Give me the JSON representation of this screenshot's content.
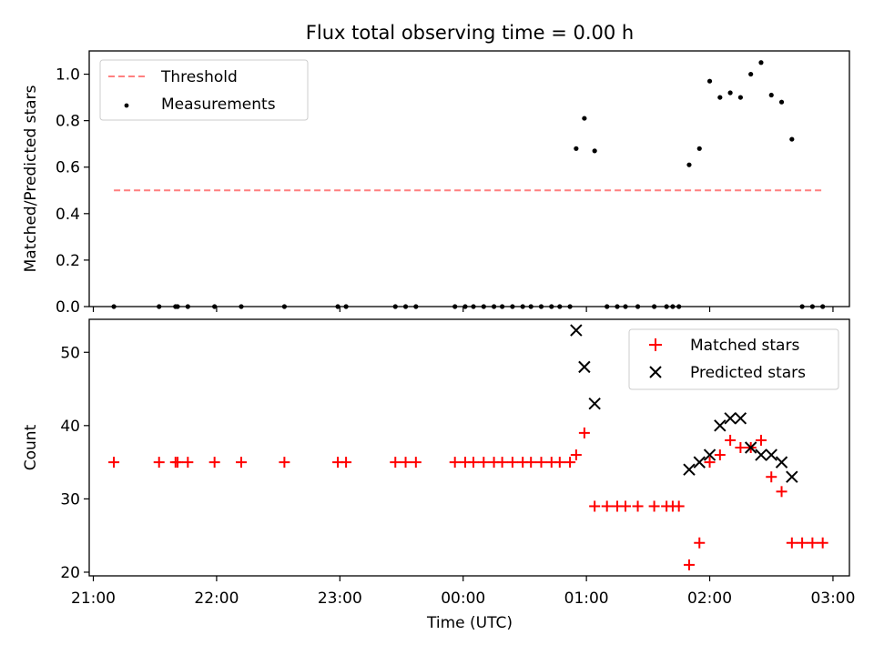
{
  "title": "Flux total observing time = 0.00 h",
  "colors": {
    "threshold": "#ff7f7f",
    "measurement": "#000000",
    "matched": "#ff0000",
    "predicted": "#000000"
  },
  "chart_data": [
    {
      "type": "scatter",
      "panel": "top",
      "ylabel": "Matched/Predicted stars",
      "ylim": [
        0,
        1.1
      ],
      "yticks": [
        0.0,
        0.2,
        0.4,
        0.6,
        0.8,
        1.0
      ],
      "ytick_labels": [
        "0.0",
        "0.2",
        "0.4",
        "0.6",
        "0.8",
        "1.0"
      ],
      "legend": {
        "position": "upper-left",
        "entries": [
          {
            "name": "Threshold",
            "marker": "dashed-line",
            "color": "#ff7f7f"
          },
          {
            "name": "Measurements",
            "marker": "dot",
            "color": "#000000"
          }
        ]
      },
      "threshold": {
        "name": "Threshold",
        "value": 0.5,
        "x_start": "21:10",
        "x_end": "02:55"
      },
      "series": [
        {
          "name": "Measurements",
          "x": [
            "21:10",
            "21:32",
            "21:40",
            "21:41",
            "21:46",
            "21:59",
            "22:12",
            "22:33",
            "22:59",
            "23:03",
            "23:27",
            "23:32",
            "23:37",
            "23:56",
            "24:01",
            "24:05",
            "24:10",
            "24:15",
            "24:19",
            "24:24",
            "24:29",
            "24:33",
            "24:38",
            "24:43",
            "24:47",
            "24:52",
            "24:55",
            "24:59",
            "25:04",
            "25:10",
            "25:15",
            "25:19",
            "25:25",
            "25:33",
            "25:39",
            "25:42",
            "25:45",
            "25:50",
            "25:55",
            "26:00",
            "26:05",
            "26:10",
            "26:15",
            "26:20",
            "26:25",
            "26:30",
            "26:35",
            "26:40",
            "26:45",
            "26:50",
            "26:55"
          ],
          "y": [
            0,
            0,
            0,
            0,
            0,
            0,
            0,
            0,
            0,
            0,
            0,
            0,
            0,
            0,
            0,
            0,
            0,
            0,
            0,
            0,
            0,
            0,
            0,
            0,
            0,
            0,
            0.68,
            0.81,
            0.67,
            0,
            0,
            0,
            0,
            0,
            0,
            0,
            0,
            0.61,
            0.68,
            0.97,
            0.9,
            0.92,
            0.9,
            1.0,
            1.05,
            0.91,
            0.88,
            0.72,
            0,
            0,
            0
          ]
        }
      ]
    },
    {
      "type": "scatter",
      "panel": "bottom",
      "xlabel": "Time (UTC)",
      "ylabel": "Count",
      "xlim": [
        "20:58",
        "03:08"
      ],
      "xticks": [
        "21:00",
        "22:00",
        "23:00",
        "00:00",
        "01:00",
        "02:00",
        "03:00"
      ],
      "ylim": [
        19.5,
        54.5
      ],
      "yticks": [
        20,
        30,
        40,
        50
      ],
      "ytick_labels": [
        "20",
        "30",
        "40",
        "50"
      ],
      "legend": {
        "position": "upper-right",
        "entries": [
          {
            "name": "Matched stars",
            "marker": "plus",
            "color": "#ff0000"
          },
          {
            "name": "Predicted stars",
            "marker": "x",
            "color": "#000000"
          }
        ]
      },
      "series": [
        {
          "name": "Matched stars",
          "x": [
            "21:10",
            "21:32",
            "21:40",
            "21:41",
            "21:46",
            "21:59",
            "22:12",
            "22:33",
            "22:59",
            "23:03",
            "23:27",
            "23:32",
            "23:37",
            "23:56",
            "24:01",
            "24:05",
            "24:10",
            "24:15",
            "24:19",
            "24:24",
            "24:29",
            "24:33",
            "24:38",
            "24:43",
            "24:47",
            "24:52",
            "24:55",
            "24:59",
            "25:04",
            "25:10",
            "25:15",
            "25:19",
            "25:25",
            "25:33",
            "25:39",
            "25:42",
            "25:45",
            "25:50",
            "25:55",
            "26:00",
            "26:05",
            "26:10",
            "26:15",
            "26:20",
            "26:25",
            "26:30",
            "26:35",
            "26:40",
            "26:45",
            "26:50",
            "26:55"
          ],
          "y": [
            35,
            35,
            35,
            35,
            35,
            35,
            35,
            35,
            35,
            35,
            35,
            35,
            35,
            35,
            35,
            35,
            35,
            35,
            35,
            35,
            35,
            35,
            35,
            35,
            35,
            35,
            36,
            39,
            29,
            29,
            29,
            29,
            29,
            29,
            29,
            29,
            29,
            21,
            24,
            35,
            36,
            38,
            37,
            37,
            38,
            33,
            31,
            24,
            24,
            24,
            24
          ]
        },
        {
          "name": "Predicted stars",
          "x": [
            "24:55",
            "24:59",
            "25:04",
            "25:50",
            "25:55",
            "26:00",
            "26:05",
            "26:10",
            "26:15",
            "26:20",
            "26:25",
            "26:30",
            "26:35",
            "26:40"
          ],
          "y": [
            53,
            48,
            43,
            34,
            35,
            36,
            40,
            41,
            41,
            37,
            36,
            36,
            35,
            33
          ]
        }
      ]
    }
  ]
}
